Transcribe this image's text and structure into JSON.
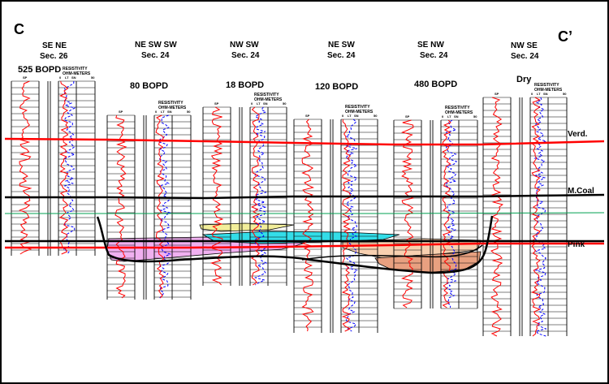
{
  "section": {
    "left_label": "C",
    "right_label": "C’"
  },
  "wells": [
    {
      "location": "SE NE",
      "sec": "Sec. 26",
      "production": "525 BOPD"
    },
    {
      "location": "NE SW SW",
      "sec": "Sec. 24",
      "production": "80 BOPD"
    },
    {
      "location": "NW SW",
      "sec": "Sec. 24",
      "production": "18 BOPD"
    },
    {
      "location": "NE SW",
      "sec": "Sec. 24",
      "production": "120 BOPD"
    },
    {
      "location": "SE NW",
      "sec": "Sec. 24",
      "production": "480 BOPD"
    },
    {
      "location": "NW SE",
      "sec": "Sec. 24",
      "production": "Dry"
    }
  ],
  "log_header": {
    "title1": "RESISTIVITY",
    "title2": "OHM-METERS",
    "sp": "SP",
    "lt": "LT",
    "sn": "SN",
    "scale_min": "0",
    "scale_max": "50"
  },
  "markers": [
    {
      "name": "Verd.",
      "color": "#ff0000"
    },
    {
      "name": "M.Coal",
      "color": "#000000"
    },
    {
      "name": "Pink",
      "color": "#ff0000"
    }
  ],
  "colors": {
    "sp_curve": "#ff0000",
    "resistivity_curve": "#0000ff",
    "channel_pink": "#f0b0f0",
    "channel_cyan": "#33dde8",
    "channel_yellow": "#f2ee9a",
    "channel_peach": "#f8d0b0",
    "channel_salmon": "#e8a080",
    "green_datum": "#00a050"
  }
}
